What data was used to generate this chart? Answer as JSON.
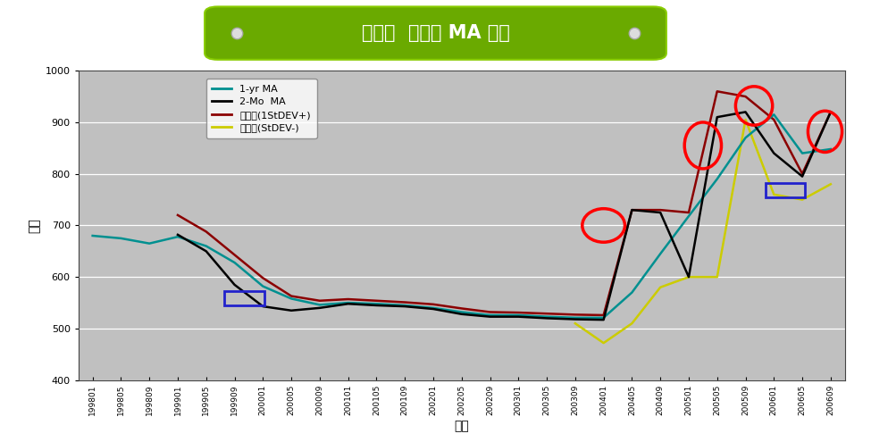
{
  "title": "실리콘  가격의 MA 도표",
  "xlabel": "시간",
  "ylabel": "가격",
  "ylim": [
    400,
    1000
  ],
  "yticks": [
    400,
    500,
    600,
    700,
    800,
    900,
    1000
  ],
  "plot_bg_color": "#c0c0c0",
  "outer_bg": "#ffffff",
  "x_labels": [
    "199801",
    "199805",
    "199809",
    "199901",
    "199905",
    "199909",
    "200001",
    "200005",
    "200009",
    "200101",
    "200105",
    "200109",
    "200201",
    "200205",
    "200209",
    "200301",
    "200305",
    "200309",
    "200401",
    "200405",
    "200409",
    "200501",
    "200505",
    "200509",
    "200601",
    "200605",
    "200609"
  ],
  "ma1yr": [
    680,
    675,
    665,
    678,
    660,
    628,
    582,
    558,
    546,
    550,
    548,
    545,
    540,
    532,
    526,
    526,
    523,
    521,
    521,
    570,
    645,
    718,
    790,
    870,
    915,
    840,
    848
  ],
  "ma2mo": [
    null,
    null,
    null,
    682,
    650,
    585,
    543,
    535,
    540,
    548,
    545,
    543,
    538,
    528,
    523,
    523,
    520,
    518,
    517,
    730,
    725,
    600,
    910,
    920,
    840,
    795,
    920
  ],
  "upper": [
    null,
    null,
    null,
    720,
    688,
    643,
    598,
    563,
    554,
    557,
    554,
    551,
    547,
    539,
    532,
    531,
    529,
    527,
    526,
    730,
    730,
    725,
    960,
    950,
    905,
    800,
    920
  ],
  "lower": [
    null,
    null,
    null,
    null,
    null,
    null,
    null,
    null,
    null,
    null,
    null,
    null,
    null,
    null,
    null,
    null,
    null,
    510,
    472,
    510,
    580,
    600,
    600,
    905,
    760,
    750,
    780
  ],
  "line_colors": {
    "ma1yr": "#009090",
    "ma2mo": "#000000",
    "upper": "#8b0000",
    "lower": "#cccc00"
  },
  "line_widths": {
    "ma1yr": 1.8,
    "ma2mo": 1.8,
    "upper": 1.8,
    "lower": 1.8
  },
  "legend_labels": [
    "1-yr MA",
    "2-Mo  MA",
    "상한가(1StDEV+)",
    "하한가(StDEV-)"
  ],
  "title_bg_color": "#6aaa00",
  "title_text_color": "#ffffff",
  "border_color": "#88cc00"
}
